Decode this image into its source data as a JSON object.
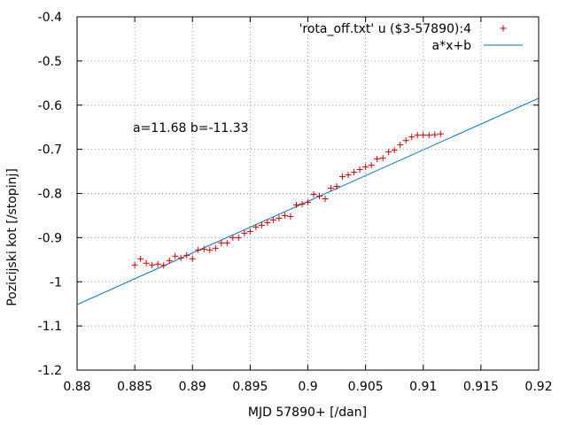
{
  "chart_data": {
    "type": "scatter",
    "xlabel": "MJD 57890+ [/dan]",
    "ylabel": "Pozicijski kot [/stopinj]",
    "xlim": [
      0.88,
      0.92
    ],
    "ylim": [
      -1.2,
      -0.4
    ],
    "x_ticks": [
      "0.88",
      "0.885",
      "0.89",
      "0.895",
      "0.9",
      "0.905",
      "0.91",
      "0.915",
      "0.92"
    ],
    "y_ticks": [
      "-0.4",
      "-0.5",
      "-0.6",
      "-0.7",
      "-0.8",
      "-0.9",
      "-1",
      "-1.1",
      "-1.2"
    ],
    "grid": true,
    "legend_position": "top-right",
    "annotation": "a=11.68 b=-11.33",
    "series": [
      {
        "name": "'rota_off.txt' u ($3-57890):4",
        "type": "scatter",
        "color": "#cc0000",
        "marker": "plus",
        "x": [
          0.885,
          0.8855,
          0.886,
          0.8865,
          0.887,
          0.8875,
          0.888,
          0.8885,
          0.889,
          0.8895,
          0.89,
          0.8905,
          0.891,
          0.8915,
          0.892,
          0.8925,
          0.893,
          0.8935,
          0.894,
          0.8945,
          0.895,
          0.8955,
          0.896,
          0.8965,
          0.897,
          0.8975,
          0.898,
          0.8985,
          0.899,
          0.8995,
          0.9,
          0.9005,
          0.901,
          0.9015,
          0.902,
          0.9025,
          0.903,
          0.9035,
          0.904,
          0.9045,
          0.905,
          0.9055,
          0.906,
          0.9065,
          0.907,
          0.9075,
          0.908,
          0.9085,
          0.909,
          0.9095,
          0.91,
          0.9105,
          0.911,
          0.9115
        ],
        "y": [
          -0.962,
          -0.948,
          -0.958,
          -0.962,
          -0.96,
          -0.963,
          -0.952,
          -0.942,
          -0.946,
          -0.94,
          -0.948,
          -0.928,
          -0.926,
          -0.928,
          -0.924,
          -0.912,
          -0.912,
          -0.9,
          -0.9,
          -0.89,
          -0.886,
          -0.876,
          -0.872,
          -0.866,
          -0.86,
          -0.856,
          -0.85,
          -0.852,
          -0.826,
          -0.824,
          -0.82,
          -0.802,
          -0.806,
          -0.812,
          -0.788,
          -0.784,
          -0.762,
          -0.758,
          -0.752,
          -0.746,
          -0.74,
          -0.736,
          -0.722,
          -0.72,
          -0.706,
          -0.702,
          -0.69,
          -0.68,
          -0.672,
          -0.668,
          -0.668,
          -0.668,
          -0.667,
          -0.665
        ]
      },
      {
        "name": "a*x+b",
        "type": "line",
        "color": "#0072bd",
        "a": 11.68,
        "b": -11.33
      }
    ]
  }
}
